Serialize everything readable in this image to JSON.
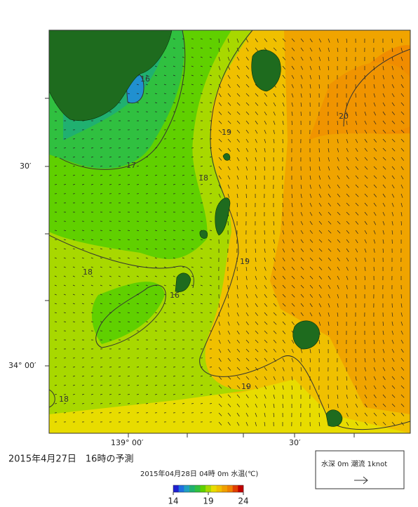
{
  "map": {
    "axis_labels": {
      "left": [
        "30′",
        "34° 00′"
      ],
      "bottom": [
        "139° 00′",
        "30′"
      ]
    },
    "contour_labels": [
      "16",
      "17",
      "18",
      "19",
      "20",
      "18",
      "16",
      "19",
      "19",
      "18"
    ],
    "caption": "2015年4月27日　16時の予測",
    "colorbar": {
      "title": "2015年04月28日 04時 0m 水温(℃)",
      "range": [
        14,
        24
      ],
      "ticks": [
        14,
        19,
        24
      ]
    },
    "legend": {
      "label": "水深 0m 潮流 1knot"
    }
  }
}
